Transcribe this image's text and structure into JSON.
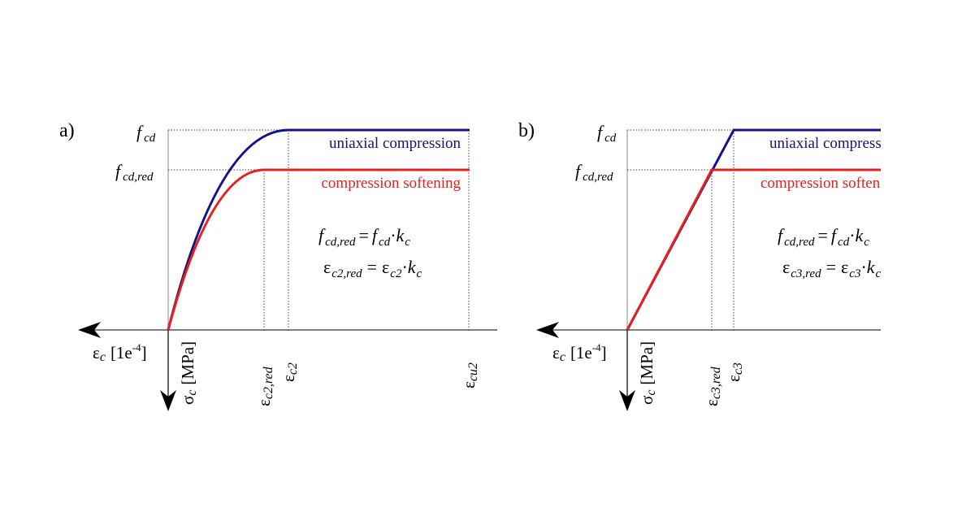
{
  "colors": {
    "uniaxial": "#14148a",
    "softening": "#e8201c",
    "axis": "#000000",
    "guide": "#444444"
  },
  "panel_a": {
    "label": "a)",
    "legend": {
      "uniaxial": "uniaxial compression",
      "softening": "compression softening"
    },
    "y_labels": {
      "fcd": "f",
      "fcd_sub": "cd",
      "fcd_red": "f",
      "fcd_red_sub": "cd,red"
    },
    "x_axis_label": {
      "symbol": "ε",
      "sub": "c",
      "unit": "[1e",
      "exp": "-4",
      "close": "]"
    },
    "y_axis_label": {
      "symbol": "σ",
      "sub": "c",
      "unit": "[MPa]"
    },
    "ticks": [
      {
        "symbol": "ε",
        "sub": "c2,red"
      },
      {
        "symbol": "ε",
        "sub": "c2"
      },
      {
        "symbol": "ε",
        "sub": "cu2"
      }
    ],
    "formula1": {
      "lhs": "f",
      "lhs_sub": "cd,red",
      "eq": "=",
      "r1": "f",
      "r1_sub": "cd",
      "dot": "·",
      "r2": "k",
      "r2_sub": "c"
    },
    "formula2": {
      "lhs": "ε",
      "lhs_sub": "c2,red",
      "eq": "=",
      "r1": "ε",
      "r1_sub": "c2",
      "dot": "·",
      "r2": "k",
      "r2_sub": "c"
    }
  },
  "panel_b": {
    "label": "b)",
    "legend": {
      "uniaxial": "uniaxial compression",
      "softening": "compression softening"
    },
    "y_labels": {
      "fcd": "f",
      "fcd_sub": "cd",
      "fcd_red": "f",
      "fcd_red_sub": "cd,red"
    },
    "x_axis_label": {
      "symbol": "ε",
      "sub": "c",
      "unit": "[1e",
      "exp": "-4",
      "close": "]"
    },
    "y_axis_label": {
      "symbol": "σ",
      "sub": "c",
      "unit": "[MPa]"
    },
    "ticks": [
      {
        "symbol": "ε",
        "sub": "c3,red"
      },
      {
        "symbol": "ε",
        "sub": "c3"
      }
    ],
    "formula1": {
      "lhs": "f",
      "lhs_sub": "cd,red",
      "eq": "=",
      "r1": "f",
      "r1_sub": "cd",
      "dot": "·",
      "r2": "k",
      "r2_sub": "c"
    },
    "formula2": {
      "lhs": "ε",
      "lhs_sub": "c3,red",
      "eq": "=",
      "r1": "ε",
      "r1_sub": "c3",
      "dot": "·",
      "r2": "k",
      "r2_sub": "c"
    }
  }
}
